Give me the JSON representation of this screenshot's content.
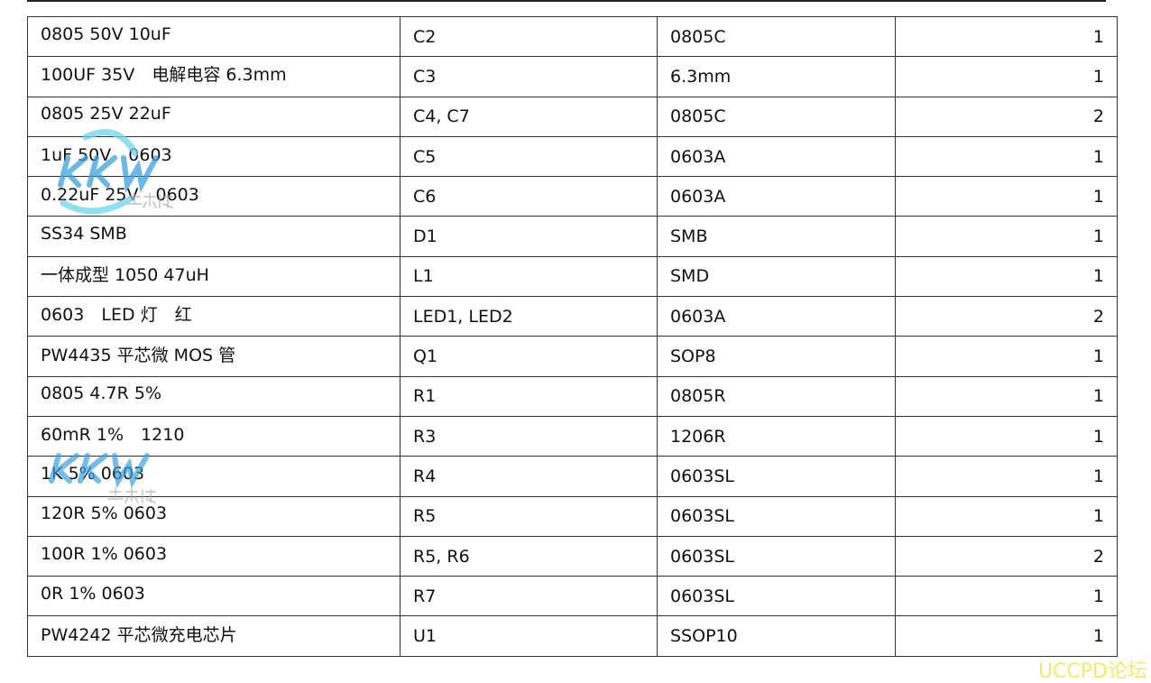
{
  "rows": [
    [
      "0805 50V 10uF",
      "C2",
      "0805C",
      "1"
    ],
    [
      "100UF 35V　电解电容 6.3mm",
      "C3",
      "6.3mm",
      "1"
    ],
    [
      "0805 25V 22uF",
      "C4, C7",
      "0805C",
      "2"
    ],
    [
      "1uF 50V　0603",
      "C5",
      "0603A",
      "1"
    ],
    [
      "0.22uF 25V　0603",
      "C6",
      "0603A",
      "1"
    ],
    [
      "SS34 SMB",
      "D1",
      "SMB",
      "1"
    ],
    [
      "一体成型 1050 47uH",
      "L1",
      "SMD",
      "1"
    ],
    [
      "0603　LED 灯　红",
      "LED1, LED2",
      "0603A",
      "2"
    ],
    [
      "PW4435 平芯微 MOS 管",
      "Q1",
      "SOP8",
      "1"
    ],
    [
      "0805 4.7R 5%",
      "R1",
      "0805R",
      "1"
    ],
    [
      "60mR 1%　1210",
      "R3",
      "1206R",
      "1"
    ],
    [
      "1K 5% 0603",
      "R4",
      "0603SL",
      "1"
    ],
    [
      "120R 5% 0603",
      "R5",
      "0603SL",
      "1"
    ],
    [
      "100R 1% 0603",
      "R5, R6",
      "0603SL",
      "2"
    ],
    [
      "0R 1% 0603",
      "R7",
      "0603SL",
      "1"
    ],
    [
      "PW4242 平芯微充电芯片",
      "U1",
      "SSOP10",
      "1"
    ]
  ],
  "watermark": {
    "logo_text": "KKW",
    "logo_subtext": "零克微",
    "color": "#3aa0e0"
  },
  "footer": {
    "text": "UCCPD论坛",
    "color": "#f4e96a"
  }
}
